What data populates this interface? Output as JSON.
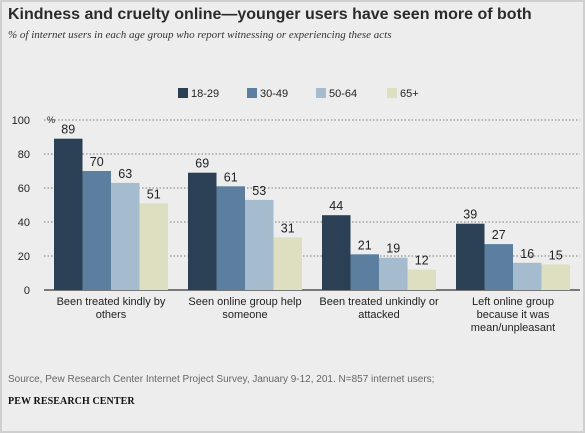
{
  "title": "Kindness and cruelty online—younger users have seen more of both",
  "subtitle": "% of internet users in each age group who report witnessing or experiencing these acts",
  "source": "Source, Pew Research Center Internet Project Survey, January 9-12, 201. N=857 internet users;",
  "brand": "PEW RESEARCH CENTER",
  "colors": {
    "series": [
      "#2b3f55",
      "#5c7f9f",
      "#a4bccd",
      "#dedec1"
    ],
    "grid": "#555555",
    "text": "#222222"
  },
  "chart_data": {
    "type": "bar",
    "unit_label": "%",
    "legend_position": "top-right",
    "grid": true,
    "ylim": [
      0,
      100
    ],
    "yticks": [
      0,
      20,
      40,
      60,
      80,
      100
    ],
    "categories": [
      [
        "Been treated kindly by",
        "others"
      ],
      [
        "Seen online group help",
        "someone"
      ],
      [
        "Been treated unkindly or",
        "attacked"
      ],
      [
        "Left online group",
        "because it was",
        "mean/unpleasant"
      ]
    ],
    "series": [
      {
        "name": "18-29",
        "values": [
          89,
          69,
          44,
          39
        ]
      },
      {
        "name": "30-49",
        "values": [
          70,
          61,
          21,
          27
        ]
      },
      {
        "name": "50-64",
        "values": [
          63,
          53,
          19,
          16
        ]
      },
      {
        "name": "65+",
        "values": [
          51,
          31,
          12,
          15
        ]
      }
    ]
  }
}
